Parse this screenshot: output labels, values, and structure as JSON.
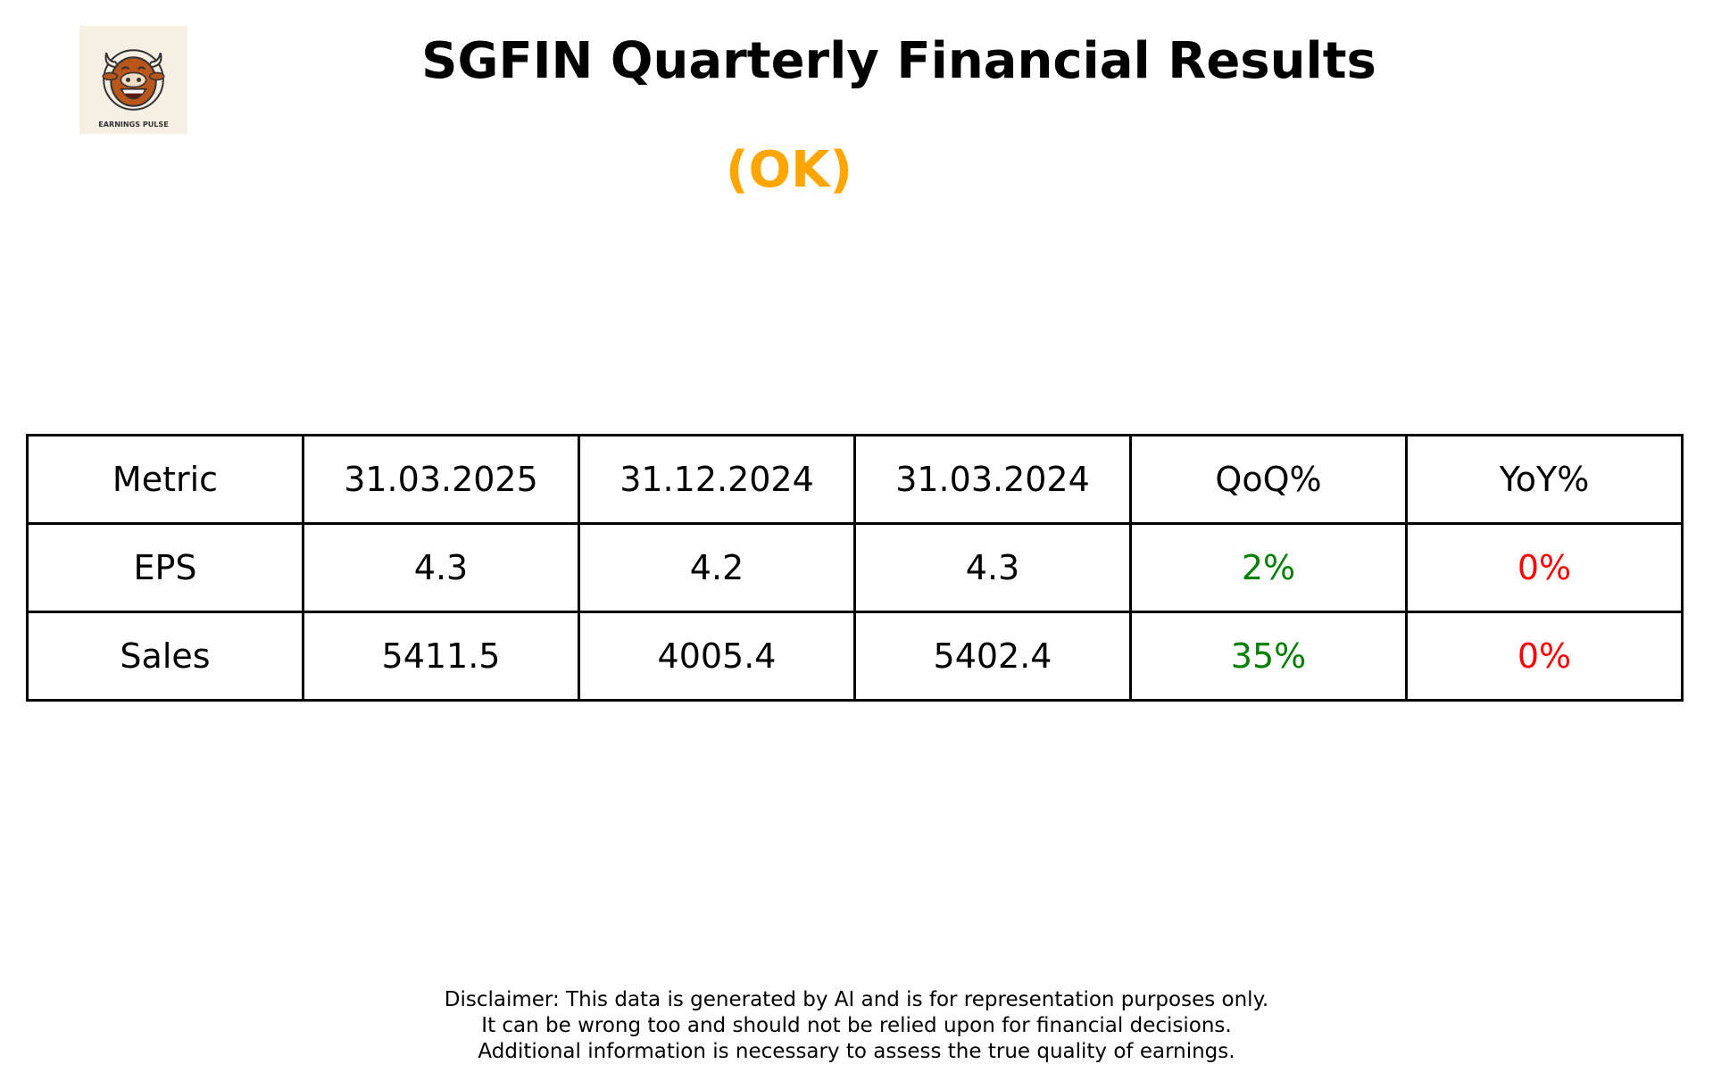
{
  "header": {
    "title": "SGFIN Quarterly Financial Results",
    "rating": "(OK)",
    "rating_color": "#FFA500",
    "logo_text": "EARNINGS PULSE"
  },
  "table": {
    "columns": [
      "Metric",
      "31.03.2025",
      "31.12.2024",
      "31.03.2024",
      "QoQ%",
      "YoY%"
    ],
    "rows": [
      {
        "metric": "EPS",
        "q1": "4.3",
        "q2": "4.2",
        "q3": "4.3",
        "qoq": "2%",
        "yoy": "0%"
      },
      {
        "metric": "Sales",
        "q1": "5411.5",
        "q2": "4005.4",
        "q3": "5402.4",
        "qoq": "35%",
        "yoy": "0%"
      }
    ],
    "positive_color": "#008000",
    "negative_color": "#FF0000"
  },
  "disclaimer": [
    "Disclaimer: This data is generated by AI and is for representation purposes only.",
    "It can be wrong too and should not be relied upon for financial decisions.",
    "Additional information is necessary to assess the true quality of earnings."
  ]
}
